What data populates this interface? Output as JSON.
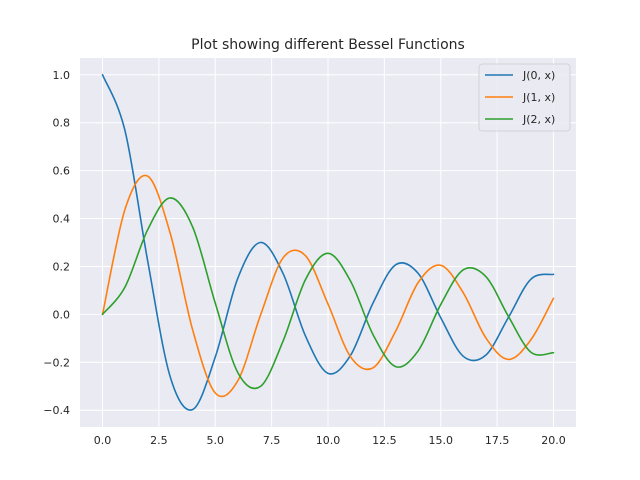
{
  "chart_data": {
    "type": "line",
    "title": "Plot showing different Bessel Functions",
    "xlabel": "",
    "ylabel": "",
    "xlim": [
      -1.0,
      21.0
    ],
    "ylim": [
      -0.47,
      1.07
    ],
    "xticks": [
      0,
      2.5,
      5,
      7.5,
      10,
      12.5,
      15,
      17.5,
      20
    ],
    "xtick_labels": [
      "0.0",
      "2.5",
      "5.0",
      "7.5",
      "10.0",
      "12.5",
      "15.0",
      "17.5",
      "20.0"
    ],
    "yticks": [
      -0.4,
      -0.2,
      0.0,
      0.2,
      0.4,
      0.6,
      0.8,
      1.0
    ],
    "ytick_labels": [
      "−0.4",
      "−0.2",
      "0.0",
      "0.2",
      "0.4",
      "0.6",
      "0.8",
      "1.0"
    ],
    "grid": true,
    "legend_position": "upper right",
    "x": [
      0.0,
      1.0,
      2.0,
      3.0,
      4.0,
      5.0,
      6.0,
      7.0,
      8.0,
      9.0,
      10.0,
      11.0,
      12.0,
      13.0,
      14.0,
      15.0,
      16.0,
      17.0,
      18.0,
      19.0,
      20.0
    ],
    "series": [
      {
        "name": "J(0, x)",
        "color": "#1f77b4",
        "values": [
          1.0,
          0.765,
          0.224,
          -0.26,
          -0.397,
          -0.178,
          0.151,
          0.3,
          0.172,
          -0.09,
          -0.246,
          -0.171,
          0.048,
          0.207,
          0.171,
          -0.014,
          -0.175,
          -0.17,
          -0.013,
          0.147,
          0.167
        ]
      },
      {
        "name": "J(1, x)",
        "color": "#ff7f0e",
        "values": [
          0.0,
          0.44,
          0.577,
          0.339,
          -0.066,
          -0.328,
          -0.277,
          -0.005,
          0.235,
          0.245,
          0.043,
          -0.177,
          -0.223,
          -0.07,
          0.133,
          0.205,
          0.09,
          -0.098,
          -0.188,
          -0.106,
          0.067
        ]
      },
      {
        "name": "J(2, x)",
        "color": "#2ca02c",
        "values": [
          0.0,
          0.115,
          0.353,
          0.486,
          0.364,
          0.047,
          -0.243,
          -0.301,
          -0.113,
          0.145,
          0.255,
          0.139,
          -0.085,
          -0.218,
          -0.152,
          0.041,
          0.186,
          0.158,
          -0.008,
          -0.158,
          -0.16
        ]
      }
    ]
  }
}
